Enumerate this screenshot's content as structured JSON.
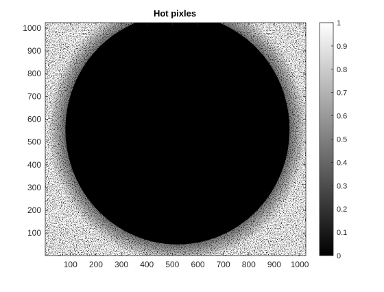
{
  "chart_data": {
    "type": "heatmap",
    "title": "Hot pixles",
    "xlabel": "",
    "ylabel": "",
    "xlim": [
      1,
      1024
    ],
    "ylim": [
      1,
      1024
    ],
    "y_direction": "normal",
    "x_ticks": [
      100,
      200,
      300,
      400,
      500,
      600,
      700,
      800,
      900,
      1000
    ],
    "y_ticks": [
      100,
      200,
      300,
      400,
      500,
      600,
      700,
      800,
      900,
      1000
    ],
    "colormap": "gray",
    "clim": [
      0,
      1
    ],
    "colorbar_ticks": [
      "0",
      "0.1",
      "0.2",
      "0.3",
      "0.4",
      "0.5",
      "0.6",
      "0.7",
      "0.8",
      "0.9",
      "1"
    ],
    "colorbar_position": "right",
    "grid": false,
    "dark_region": {
      "shape": "ellipse",
      "center": [
        520,
        555
      ],
      "x_radius": 440,
      "y_radius": 505,
      "value": 0
    },
    "background_value": 1,
    "colors": {
      "low": "#000000",
      "high": "#ffffff",
      "axis": "#262626"
    }
  }
}
